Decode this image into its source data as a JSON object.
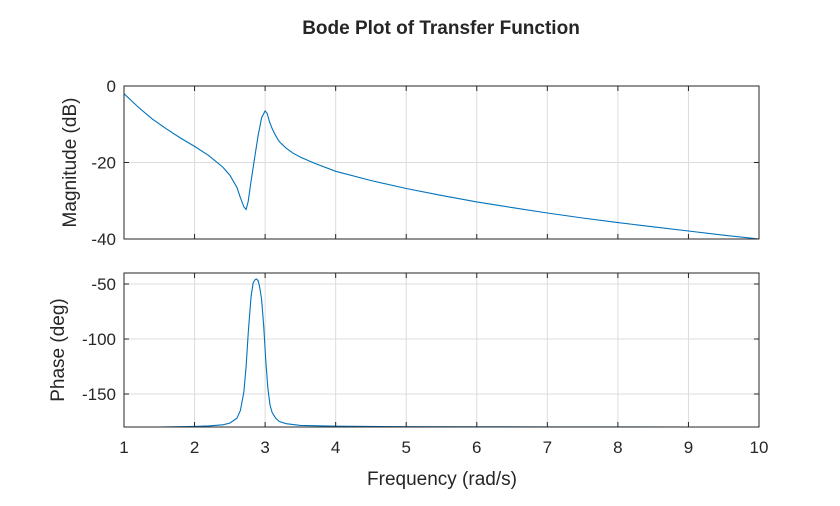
{
  "chart_data": {
    "type": "line",
    "title": "Bode Plot of Transfer Function",
    "xlabel": "Frequency (rad/s)",
    "xlim": [
      1,
      10
    ],
    "xticks": [
      1,
      2,
      3,
      4,
      5,
      6,
      7,
      8,
      9,
      10
    ],
    "grid": true,
    "line_color": "#0072bd",
    "subplots": [
      {
        "id": "magnitude",
        "ylabel": "Magnitude (dB)",
        "ylim": [
          -40,
          0
        ],
        "yticks": [
          0,
          -20,
          -40
        ],
        "series": [
          {
            "x": [
              1.0,
              1.2,
              1.4,
              1.6,
              1.8,
              2.0,
              2.2,
              2.4,
              2.5,
              2.6,
              2.65,
              2.7,
              2.73,
              2.76,
              2.8,
              2.85,
              2.9,
              2.95,
              3.0,
              3.03,
              3.06,
              3.1,
              3.15,
              3.2,
              3.3,
              3.4,
              3.5,
              3.7,
              4.0,
              4.5,
              5.0,
              5.5,
              6.0,
              6.5,
              7.0,
              7.5,
              8.0,
              8.5,
              9.0,
              9.5,
              10.0
            ],
            "y": [
              -2,
              -5.5,
              -8.6,
              -11.2,
              -13.6,
              -15.8,
              -18.2,
              -21.2,
              -23.3,
              -26.5,
              -29.2,
              -31.6,
              -32.3,
              -30.2,
              -25,
              -19,
              -13,
              -8.3,
              -6.5,
              -7.2,
              -9.2,
              -11.2,
              -13,
              -14.5,
              -16.3,
              -17.6,
              -18.6,
              -20.2,
              -22.3,
              -24.7,
              -26.8,
              -28.6,
              -30.3,
              -31.8,
              -33.2,
              -34.5,
              -35.7,
              -36.8,
              -37.9,
              -39,
              -40
            ]
          }
        ]
      },
      {
        "id": "phase",
        "ylabel": "Phase (deg)",
        "ylim": [
          -180,
          -40
        ],
        "yticks": [
          -50,
          -100,
          -150
        ],
        "series": [
          {
            "x": [
              1.0,
              1.5,
              2.0,
              2.2,
              2.4,
              2.5,
              2.6,
              2.65,
              2.7,
              2.73,
              2.76,
              2.8,
              2.83,
              2.86,
              2.88,
              2.9,
              2.92,
              2.95,
              2.98,
              3.01,
              3.04,
              3.07,
              3.1,
              3.15,
              3.2,
              3.3,
              3.5,
              4.0,
              5.0,
              6.0,
              7.0,
              8.0,
              9.0,
              10.0
            ],
            "y": [
              -180,
              -180,
              -179.5,
              -179,
              -178,
              -176.5,
              -172,
              -165,
              -148,
              -125,
              -95,
              -62,
              -49,
              -46,
              -45.5,
              -47,
              -52,
              -64,
              -88,
              -120,
              -145,
              -160,
              -167,
              -172,
              -175,
              -177,
              -178.5,
              -179.3,
              -179.7,
              -179.8,
              -179.9,
              -179.9,
              -180,
              -180
            ]
          }
        ]
      }
    ]
  }
}
